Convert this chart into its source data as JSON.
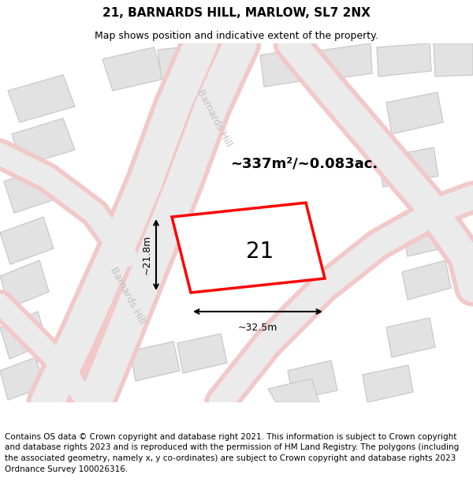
{
  "title": "21, BARNARDS HILL, MARLOW, SL7 2NX",
  "subtitle": "Map shows position and indicative extent of the property.",
  "footer": "Contains OS data © Crown copyright and database right 2021. This information is subject to Crown copyright and database rights 2023 and is reproduced with the permission of HM Land Registry. The polygons (including the associated geometry, namely x, y co-ordinates) are subject to Crown copyright and database rights 2023 Ordnance Survey 100026316.",
  "map_bg": "#f5f5f5",
  "building_fill": "#e2e2e2",
  "building_edge": "#cccccc",
  "road_fill": "#ebebeb",
  "road_pink": "#f2c8c8",
  "highlight_fill": "#ffffff",
  "highlight_edge": "#ff0000",
  "street_color": "#c0c0c0",
  "street_label": "Barnards Hill",
  "area_label": "~337m²/~0.083ac.",
  "number_label": "21",
  "dim_width": "~32.5m",
  "dim_height": "~21.8m",
  "title_fontsize": 11,
  "subtitle_fontsize": 9,
  "footer_fontsize": 7.5,
  "number_fontsize": 20,
  "area_fontsize": 13,
  "street_fontsize": 9,
  "dim_fontsize": 9
}
